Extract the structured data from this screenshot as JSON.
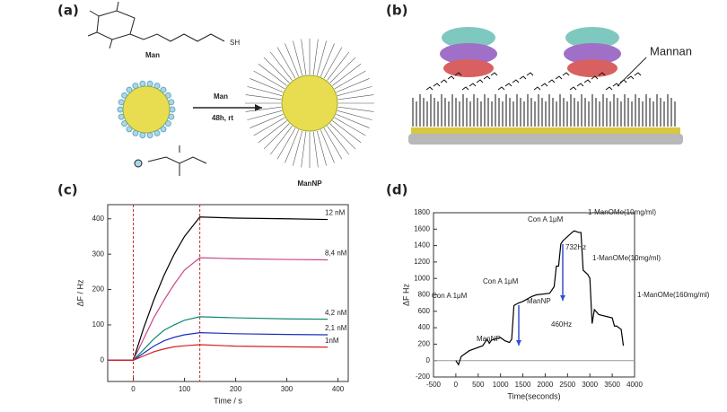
{
  "panels": {
    "a": {
      "label": "(a)",
      "ligand": "Man",
      "thiol": "SH",
      "reagent": "Man",
      "conditions": "48h, rt",
      "product": "ManNP"
    },
    "b": {
      "label": "(b)",
      "annotation": "Mannan"
    },
    "c": {
      "label": "(c)"
    },
    "d": {
      "label": "(d)"
    }
  },
  "chart_data": [
    {
      "type": "line",
      "x_label": "Time / s",
      "y_label": "ΔF / Hz",
      "xlim": [
        -50,
        420
      ],
      "xticks": [
        0,
        100,
        200,
        300,
        400
      ],
      "ylim": [
        -60,
        440
      ],
      "yticks": [
        0,
        100,
        200,
        300,
        400
      ],
      "x": [
        -50,
        0,
        20,
        40,
        60,
        80,
        100,
        130,
        200,
        300,
        380
      ],
      "series": [
        {
          "name": "12 nM",
          "color": "#000000",
          "values": [
            0,
            0,
            90,
            170,
            240,
            300,
            350,
            405,
            402,
            400,
            398
          ]
        },
        {
          "name": "8,4 nM",
          "color": "#c8488a",
          "values": [
            0,
            0,
            60,
            120,
            170,
            215,
            255,
            290,
            287,
            285,
            284
          ]
        },
        {
          "name": "4,2 nM",
          "color": "#0f8a70",
          "values": [
            0,
            0,
            30,
            60,
            85,
            100,
            113,
            123,
            120,
            117,
            116
          ]
        },
        {
          "name": "2,1 nM",
          "color": "#1c2fbf",
          "values": [
            0,
            0,
            20,
            40,
            55,
            65,
            72,
            78,
            75,
            73,
            72
          ]
        },
        {
          "name": "1nM",
          "color": "#d42020",
          "values": [
            0,
            0,
            12,
            24,
            32,
            38,
            41,
            44,
            40,
            38,
            37
          ]
        }
      ],
      "vlines": [
        0,
        130
      ]
    },
    {
      "type": "line",
      "x_label": "Time(seconds)",
      "y_label": "ΔF  Hz",
      "xlim": [
        -500,
        4000
      ],
      "xticks": [
        -500,
        0,
        500,
        1000,
        1500,
        2000,
        2500,
        3000,
        3500,
        4000
      ],
      "ylim": [
        -200,
        1800
      ],
      "yticks": [
        -200,
        0,
        200,
        400,
        600,
        800,
        1000,
        1200,
        1400,
        1600,
        1800
      ],
      "x": [
        0,
        60,
        120,
        300,
        600,
        700,
        750,
        800,
        1000,
        1100,
        1200,
        1250,
        1300,
        1400,
        1500,
        1700,
        1800,
        2100,
        2200,
        2250,
        2300,
        2350,
        2400,
        2600,
        2650,
        2750,
        2800,
        2850,
        2950,
        3000,
        3050,
        3100,
        3200,
        3500,
        3550,
        3600,
        3700,
        3750
      ],
      "values": [
        0,
        -50,
        50,
        120,
        180,
        260,
        210,
        250,
        280,
        240,
        220,
        260,
        670,
        700,
        720,
        780,
        800,
        820,
        900,
        1150,
        1150,
        1420,
        1460,
        1560,
        1580,
        1560,
        1560,
        1100,
        1050,
        1000,
        450,
        620,
        560,
        520,
        420,
        420,
        380,
        180
      ],
      "color": "#000000",
      "annotations": [
        "Con A 1μM",
        "ManNP",
        "Con A 1μM",
        "ManNP",
        "Con A 1μM",
        "1-ManOMe(10mg/ml)",
        "1-ManOMe(10mg/ml)",
        "1-ManOMe(160mg/ml)",
        "460Hz",
        "732Hz"
      ]
    }
  ]
}
